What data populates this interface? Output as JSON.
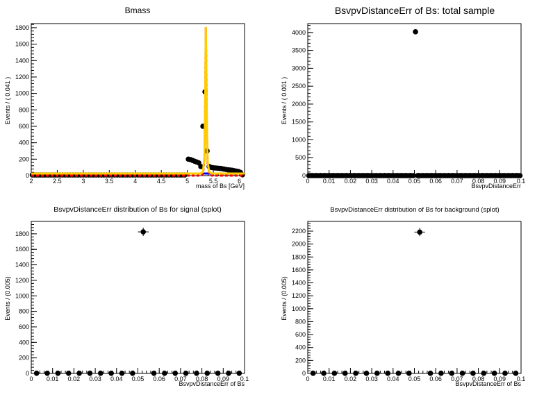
{
  "chart_data": [
    {
      "type": "scatter",
      "title": "Bmass",
      "xlabel": "mass of Bs [GeV]",
      "ylabel": "Events / ( 0.041 )",
      "xlim": [
        2,
        6.1
      ],
      "ylim": [
        0,
        1850
      ],
      "xticks": [
        2,
        2.5,
        3,
        3.5,
        4,
        4.5,
        5,
        5.5,
        6
      ],
      "xtick_labels": [
        "2",
        "2.5",
        "3",
        "3.5",
        "4",
        "4.5",
        "5",
        "5.5",
        "6"
      ],
      "yticks": [
        0,
        200,
        400,
        600,
        800,
        1000,
        1200,
        1400,
        1600,
        1800
      ],
      "ytick_labels": [
        "0",
        "200",
        "400",
        "600",
        "800",
        "1000",
        "1200",
        "1400",
        "1600",
        "1800"
      ],
      "series": [
        {
          "kind": "points",
          "color": "#000000",
          "x": [
            2.02,
            2.06,
            2.1,
            2.14,
            2.18,
            2.22,
            2.26,
            2.3,
            2.34,
            2.38,
            2.42,
            2.46,
            2.5,
            2.55,
            2.6,
            2.65,
            2.7,
            2.75,
            2.8,
            2.85,
            2.9,
            2.95,
            3.0,
            3.05,
            3.1,
            3.15,
            3.2,
            3.25,
            3.3,
            3.35,
            3.4,
            3.45,
            3.5,
            3.55,
            3.6,
            3.65,
            3.7,
            3.75,
            3.8,
            3.85,
            3.9,
            3.95,
            4.0,
            4.05,
            4.1,
            4.15,
            4.2,
            4.25,
            4.3,
            4.35,
            4.4,
            4.45,
            4.5,
            4.55,
            4.6,
            4.65,
            4.7,
            4.75,
            4.8,
            4.85,
            4.9,
            4.95,
            5.02,
            5.06,
            5.1,
            5.14,
            5.18,
            5.22,
            5.26,
            5.3,
            5.34,
            5.38,
            5.42,
            5.46,
            5.5,
            5.54,
            5.58,
            5.62,
            5.66,
            5.7,
            5.74,
            5.78,
            5.82,
            5.86,
            5.9,
            5.94,
            5.98,
            6.02,
            6.06
          ],
          "y": [
            8,
            8,
            8,
            8,
            8,
            8,
            8,
            8,
            8,
            8,
            8,
            8,
            8,
            8,
            8,
            8,
            8,
            8,
            8,
            8,
            8,
            8,
            8,
            8,
            8,
            8,
            8,
            8,
            8,
            8,
            8,
            8,
            8,
            8,
            8,
            8,
            8,
            8,
            8,
            8,
            8,
            8,
            8,
            8,
            8,
            8,
            8,
            8,
            8,
            8,
            8,
            8,
            8,
            8,
            8,
            8,
            8,
            8,
            8,
            8,
            8,
            8,
            200,
            195,
            185,
            175,
            165,
            155,
            110,
            600,
            1020,
            300,
            110,
            100,
            95,
            92,
            90,
            88,
            85,
            80,
            75,
            70,
            68,
            65,
            60,
            55,
            50,
            40,
            10
          ]
        },
        {
          "kind": "line",
          "name": "background",
          "color": "#0000ff",
          "x": [
            2.0,
            6.1
          ],
          "y": [
            25,
            25
          ]
        },
        {
          "kind": "line",
          "name": "signal",
          "color": "#ff0000",
          "dashed": true,
          "x": [
            2.0,
            5.25,
            5.3,
            5.33,
            5.345,
            5.355,
            5.365,
            5.375,
            5.39,
            5.42,
            5.47,
            6.1
          ],
          "y": [
            0,
            0,
            20,
            200,
            1000,
            1800,
            1300,
            600,
            150,
            20,
            0,
            0
          ]
        },
        {
          "kind": "line",
          "name": "total",
          "color": "#ffcc00",
          "x": [
            2.0,
            5.25,
            5.3,
            5.33,
            5.345,
            5.355,
            5.365,
            5.375,
            5.39,
            5.42,
            5.47,
            6.1
          ],
          "y": [
            25,
            25,
            45,
            225,
            1025,
            1810,
            1325,
            625,
            175,
            45,
            25,
            25
          ]
        }
      ]
    },
    {
      "type": "scatter",
      "title": "BsvpvDistanceErr of Bs: total sample",
      "xlabel": "BsvpvDistanceErr",
      "ylabel": "Events / ( 0.001 )",
      "xlim": [
        0,
        0.1
      ],
      "ylim": [
        0,
        4250
      ],
      "xticks": [
        0,
        0.01,
        0.02,
        0.03,
        0.04,
        0.05,
        0.06,
        0.07,
        0.08,
        0.09,
        0.1
      ],
      "xtick_labels": [
        "0",
        "0.01",
        "0.02",
        "0.03",
        "0.04",
        "0.05",
        "0.06",
        "0.07",
        "0.08",
        "0.09",
        "0.1"
      ],
      "yticks": [
        0,
        500,
        1000,
        1500,
        2000,
        2500,
        3000,
        3500,
        4000
      ],
      "ytick_labels": [
        "0",
        "500",
        "1000",
        "1500",
        "2000",
        "2500",
        "3000",
        "3500",
        "4000"
      ],
      "series": [
        {
          "kind": "points",
          "color": "#000000",
          "bin_width": 0.001,
          "peak_x": 0.0505,
          "peak_y": 4020,
          "baseline_y": 0
        }
      ]
    },
    {
      "type": "scatter",
      "title": "BsvpvDistanceErr distribution of Bs for signal (splot)",
      "xlabel": "BsvpvDistanceErr of Bs",
      "ylabel": "Events / (0.005)",
      "xlim": [
        0,
        0.1
      ],
      "ylim": [
        0,
        1960
      ],
      "xticks": [
        0,
        0.01,
        0.02,
        0.03,
        0.04,
        0.05,
        0.06,
        0.07,
        0.08,
        0.09,
        0.1
      ],
      "xtick_labels": [
        "0",
        "0.01",
        "0.02",
        "0.03",
        "0.04",
        "0.05",
        "0.06",
        "0.07",
        "0.08",
        "0.09",
        "0.1"
      ],
      "yticks": [
        0,
        200,
        400,
        600,
        800,
        1000,
        1200,
        1400,
        1600,
        1800
      ],
      "ytick_labels": [
        "0",
        "200",
        "400",
        "600",
        "800",
        "1000",
        "1200",
        "1400",
        "1600",
        "1800"
      ],
      "series": [
        {
          "kind": "points",
          "color": "#000000",
          "x": [
            0.0025,
            0.0075,
            0.0125,
            0.0175,
            0.0225,
            0.0275,
            0.0325,
            0.0375,
            0.0425,
            0.0475,
            0.0525,
            0.0575,
            0.0625,
            0.0675,
            0.0725,
            0.0775,
            0.0825,
            0.0875,
            0.0925,
            0.0975
          ],
          "y": [
            2,
            2,
            2,
            2,
            2,
            2,
            2,
            2,
            2,
            2,
            1825,
            2,
            2,
            2,
            2,
            2,
            2,
            2,
            2,
            2
          ]
        }
      ]
    },
    {
      "type": "scatter",
      "title": "BsvpvDistanceErr distribution of Bs for background (splot)",
      "xlabel": "BsvpvDistanceErr of Bs",
      "ylabel": "Events / (0.005)",
      "xlim": [
        0,
        0.1
      ],
      "ylim": [
        0,
        2350
      ],
      "xticks": [
        0,
        0.01,
        0.02,
        0.03,
        0.04,
        0.05,
        0.06,
        0.07,
        0.08,
        0.09,
        0.1
      ],
      "xtick_labels": [
        "0",
        "0.01",
        "0.02",
        "0.03",
        "0.04",
        "0.05",
        "0.06",
        "0.07",
        "0.08",
        "0.09",
        "0.1"
      ],
      "yticks": [
        0,
        200,
        400,
        600,
        800,
        1000,
        1200,
        1400,
        1600,
        1800,
        2000,
        2200
      ],
      "ytick_labels": [
        "0",
        "200",
        "400",
        "600",
        "800",
        "1000",
        "1200",
        "1400",
        "1600",
        "1800",
        "2000",
        "2200"
      ],
      "series": [
        {
          "kind": "points",
          "color": "#000000",
          "x": [
            0.0025,
            0.0075,
            0.0125,
            0.0175,
            0.0225,
            0.0275,
            0.0325,
            0.0375,
            0.0425,
            0.0475,
            0.0525,
            0.0575,
            0.0625,
            0.0675,
            0.0725,
            0.0775,
            0.0825,
            0.0875,
            0.0925,
            0.0975
          ],
          "y": [
            2,
            2,
            2,
            2,
            2,
            2,
            2,
            2,
            2,
            2,
            2185,
            2,
            2,
            2,
            2,
            2,
            2,
            2,
            2,
            2
          ]
        }
      ]
    }
  ]
}
